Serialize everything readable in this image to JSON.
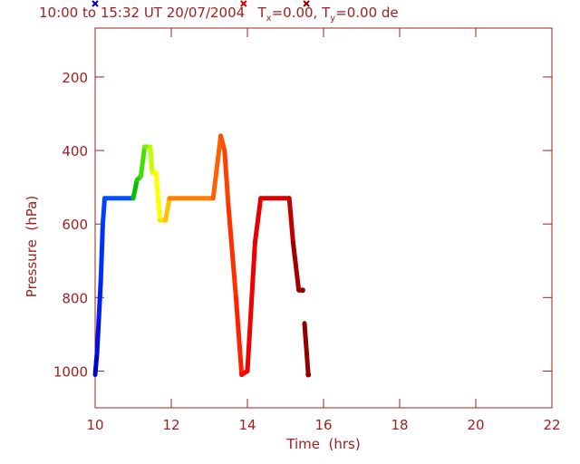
{
  "chart_data": {
    "type": "line",
    "title": [
      "10:00 to 15:32 UT 20/07/2004   T",
      "x",
      "=0.00, T",
      "y",
      "=0.00 de"
    ],
    "x_label": "Time  (hrs)",
    "y_label": "Pressure  (hPa)",
    "x": [
      10.0,
      10.05,
      10.1,
      10.15,
      10.2,
      10.25,
      11.0,
      11.1,
      11.2,
      11.3,
      11.45,
      11.5,
      11.6,
      11.7,
      11.85,
      11.95,
      13.1,
      13.3,
      13.4,
      13.5,
      13.7,
      13.85,
      14.0,
      14.2,
      14.35,
      15.1,
      15.2,
      15.35,
      15.45,
      null,
      15.5,
      15.6
    ],
    "series": [
      {
        "values": [
          1010,
          950,
          850,
          750,
          600,
          530,
          530,
          480,
          470,
          390,
          390,
          460,
          460,
          590,
          590,
          530,
          530,
          360,
          400,
          550,
          800,
          1010,
          1000,
          650,
          530,
          530,
          650,
          780,
          780,
          null,
          870,
          1010
        ],
        "colors": [
          "#0000d0",
          "#0010e0",
          "#0020f0",
          "#0030ff",
          "#0040ff",
          "#0050ff",
          "#00c000",
          "#20d000",
          "#40e000",
          "#80f000",
          "#c0ff00",
          "#e0ff00",
          "#ffff00",
          "#ffe000",
          "#ffc000",
          "#ff8000",
          "#ff6000",
          "#ff5000",
          "#ff4000",
          "#ff3000",
          "#ff2000",
          "#ff0000",
          "#f00000",
          "#e80000",
          "#d80000",
          "#c00000",
          "#a00000",
          "#900000",
          "#900000",
          null,
          "#900000",
          "#900000"
        ]
      }
    ],
    "markers": {
      "x": [
        10.0,
        13.9,
        15.55
      ],
      "colors": [
        "#0000c0",
        "#e00000",
        "#900000"
      ]
    },
    "xlim": [
      10,
      22
    ],
    "xticks": [
      10,
      12,
      14,
      16,
      18,
      20,
      22
    ],
    "ylim": [
      1100,
      67
    ],
    "yticks": [
      200,
      400,
      600,
      800,
      1000
    ]
  }
}
